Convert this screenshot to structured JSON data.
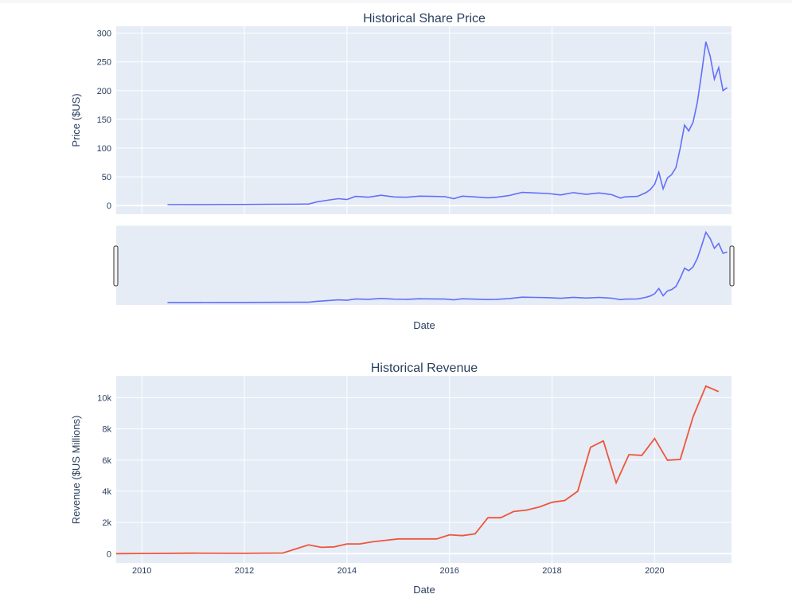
{
  "chart_data": [
    {
      "type": "line",
      "title": "Historical Share Price",
      "xlabel": "Date",
      "ylabel": "Price ($US)",
      "xlim": [
        2009.5,
        2021.5
      ],
      "ylim": [
        -15,
        312
      ],
      "yticks": [
        0,
        50,
        100,
        150,
        200,
        250,
        300
      ],
      "ytick_labels": [
        "0",
        "50",
        "100",
        "150",
        "200",
        "250",
        "300"
      ],
      "grid": true,
      "color": "#636efa",
      "range_slider": true,
      "x": [
        "2010-07",
        "2011-01",
        "2011-07",
        "2012-01",
        "2012-07",
        "2013-01",
        "2013-04",
        "2013-06",
        "2013-09",
        "2013-11",
        "2014-01",
        "2014-03",
        "2014-06",
        "2014-09",
        "2014-12",
        "2015-03",
        "2015-06",
        "2015-09",
        "2015-12",
        "2016-02",
        "2016-04",
        "2016-07",
        "2016-10",
        "2016-12",
        "2017-03",
        "2017-06",
        "2017-09",
        "2017-12",
        "2018-03",
        "2018-06",
        "2018-09",
        "2018-12",
        "2019-03",
        "2019-05",
        "2019-06",
        "2019-09",
        "2019-11",
        "2019-12",
        "2020-01",
        "2020-02",
        "2020-03",
        "2020-04",
        "2020-05",
        "2020-06",
        "2020-07",
        "2020-08",
        "2020-09",
        "2020-10",
        "2020-11",
        "2020-12",
        "2021-01",
        "2021-02",
        "2021-03",
        "2021-04",
        "2021-05",
        "2021-06"
      ],
      "y": [
        1.6,
        1.5,
        1.8,
        1.9,
        2.2,
        2.4,
        2.6,
        6.5,
        10.0,
        12.0,
        10.5,
        16.0,
        14.5,
        18.0,
        15.0,
        14.5,
        16.5,
        16.0,
        15.5,
        12.0,
        16.5,
        15.0,
        13.5,
        14.5,
        17.5,
        23.0,
        22.0,
        21.0,
        18.5,
        22.5,
        19.5,
        22.0,
        19.0,
        13.0,
        15.0,
        16.0,
        22.5,
        28.0,
        37.0,
        58.0,
        29.0,
        48.0,
        54.0,
        66.0,
        100.0,
        140.0,
        130.0,
        145.0,
        180.0,
        230.0,
        285.0,
        260.0,
        220.0,
        240.0,
        200.0,
        205.0
      ]
    },
    {
      "type": "line",
      "title": "Historical Revenue",
      "xlabel": "Date",
      "ylabel": "Revenue ($US Millions)",
      "xlim": [
        2009.5,
        2021.5
      ],
      "ylim": [
        -600,
        11400
      ],
      "yticks": [
        0,
        2000,
        4000,
        6000,
        8000,
        10000
      ],
      "ytick_labels": [
        "0",
        "2k",
        "4k",
        "6k",
        "8k",
        "10k"
      ],
      "xtick_labels": [
        "2010",
        "2012",
        "2014",
        "2016",
        "2018",
        "2020"
      ],
      "grid": true,
      "color": "#ef553b",
      "x": [
        2009.5,
        2010.0,
        2011.0,
        2012.0,
        2012.75,
        2013.0,
        2013.25,
        2013.5,
        2013.75,
        2014.0,
        2014.25,
        2014.5,
        2014.75,
        2015.0,
        2015.25,
        2015.5,
        2015.75,
        2016.0,
        2016.25,
        2016.5,
        2016.75,
        2017.0,
        2017.25,
        2017.5,
        2017.75,
        2018.0,
        2018.25,
        2018.5,
        2018.75,
        2019.0,
        2019.25,
        2019.5,
        2019.75,
        2020.0,
        2020.25,
        2020.5,
        2020.75,
        2021.0,
        2021.25
      ],
      "y": [
        0,
        10,
        30,
        20,
        40,
        300,
        560,
        400,
        430,
        620,
        620,
        760,
        850,
        940,
        940,
        940,
        940,
        1210,
        1150,
        1270,
        2300,
        2300,
        2700,
        2790,
        2990,
        3290,
        3410,
        4000,
        6820,
        7230,
        4540,
        6350,
        6300,
        7380,
        5990,
        6040,
        8770,
        10740,
        10390
      ]
    }
  ]
}
